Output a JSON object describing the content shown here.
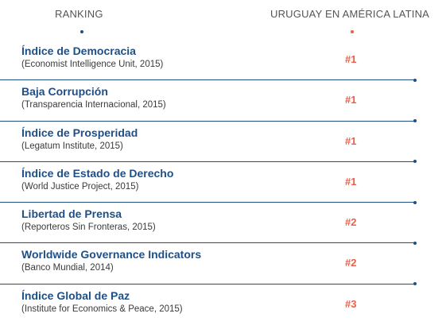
{
  "header": {
    "left_title": "RANKING",
    "right_title": "URUGUAY EN AMÉRICA LATINA"
  },
  "colors": {
    "blue": "#1e4f86",
    "orange": "#e8604a"
  },
  "rankings": [
    {
      "title": "Índice de Democracia",
      "source": "(Economist Intelligence Unit, 2015)",
      "rank": "#1"
    },
    {
      "title": "Baja Corrupción",
      "source": "(Transparencia Internacional, 2015)",
      "rank": "#1"
    },
    {
      "title": "Índice de Prosperidad",
      "source": "(Legatum Institute, 2015)",
      "rank": "#1"
    },
    {
      "title": "Índice de Estado de Derecho",
      "source": "(World Justice Project, 2015)",
      "rank": "#1"
    },
    {
      "title": "Libertad de Prensa",
      "source": "(Reporteros Sin Fronteras, 2015)",
      "rank": "#2"
    },
    {
      "title": "Worldwide Governance Indicators",
      "source": "(Banco Mundial, 2014)",
      "rank": "#2"
    },
    {
      "title": "Índice Global de Paz",
      "source": "(Institute for Economics & Peace, 2015)",
      "rank": "#3"
    }
  ]
}
